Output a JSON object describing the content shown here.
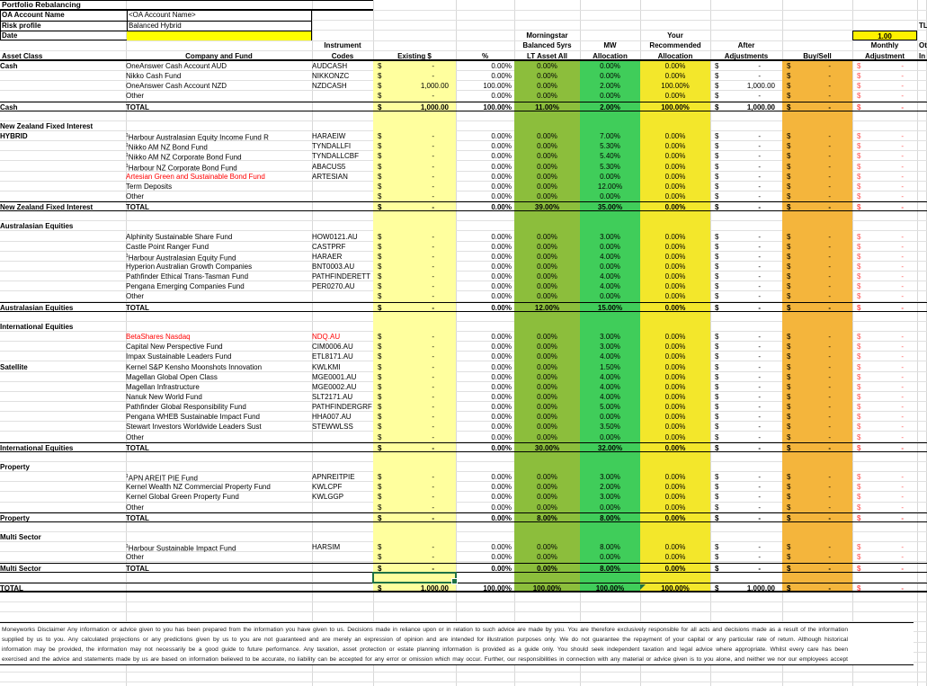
{
  "colors": {
    "existing_band": "#ffff9e",
    "morningstar_band": "#8cbe3c",
    "mw_band": "#40cd5a",
    "recommended_band": "#f3e72b",
    "buysell_band": "#f4b53c",
    "date_cell": "#ffff00",
    "factor_cell": "#fff100",
    "red_text": "#ff0000",
    "monthly_red": "#ff5050",
    "selection_green": "#1e7145",
    "gridline": "#d8d8d8"
  },
  "info": {
    "title": "Portfolio Rebalancing",
    "rows": [
      {
        "label": "OA Account Name",
        "value": "<OA Account Name>"
      },
      {
        "label": "Risk profile",
        "value": "Balanced Hybrid"
      },
      {
        "label": "Date",
        "value": ""
      }
    ],
    "factor_value": "1.00",
    "clipped": {
      "tl": "TL",
      "ot": "Ot",
      "in": "In"
    }
  },
  "columns": {
    "asset_class": "Asset Class",
    "company": "Company and Fund",
    "instrument1": "Instrument",
    "instrument2": "Codes",
    "existing": "Existing $",
    "pct": "%",
    "ms1": "Morningstar",
    "ms2": "Balanced 5yrs",
    "ms3": "LT Asset All",
    "mw1": "MW",
    "mw2": "Allocation",
    "rec1": "Your",
    "rec2": "Recommended",
    "rec3": "Allocation",
    "after1": "After",
    "after2": "Adjustments",
    "buysell": "Buy/Sell",
    "monthly1": "Monthly",
    "monthly2": "Adjustment",
    "total_word": "TOTAL"
  },
  "sheet": {
    "row_defaults": {
      "ac": "",
      "sup": false,
      "name": "",
      "code": "",
      "existing": "-",
      "pct": "0.00%",
      "ms": "0.00%",
      "mw": "0.00%",
      "rec": "0.00%",
      "after": "-",
      "buysell": "-",
      "monthly": "-",
      "red_name": false,
      "red_code": false
    },
    "total_defaults": {
      "existing": "-",
      "pct": "0.00%",
      "ms": "0.00%",
      "mw": "0.00%",
      "rec": "0.00%",
      "after": "-",
      "buysell": "-",
      "monthly": "-"
    },
    "sections": [
      {
        "name": "Cash",
        "has_title_row": false,
        "rows": [
          {
            "ac": "Cash",
            "name": "OneAnswer Cash Account AUD",
            "code": "AUDCASH"
          },
          {
            "name": "Nikko Cash Fund",
            "code": "NIKKONZC"
          },
          {
            "name": "OneAnswer Cash Account NZD",
            "code": "NZDCASH",
            "existing": "1,000.00",
            "pct": "100.00%",
            "mw": "2.00%",
            "rec": "100.00%",
            "after": "1,000.00"
          },
          {
            "name": "Other"
          }
        ],
        "total": {
          "label": "Cash",
          "existing": "1,000.00",
          "pct": "100.00%",
          "ms": "11.00%",
          "mw": "2.00%",
          "rec": "100.00%",
          "after": "1,000.00"
        }
      },
      {
        "name": "New Zealand Fixed Interest",
        "has_title_row": true,
        "rows": [
          {
            "ac": "HYBRID",
            "sup": true,
            "name": "Harbour Australasian Equity Income Fund R",
            "code": "HARAEIW",
            "mw": "7.00%"
          },
          {
            "sup": true,
            "name": "Nikko AM NZ Bond Fund",
            "code": "TYNDALLFI",
            "mw": "5.30%"
          },
          {
            "sup": true,
            "name": "Nikko AM NZ Corporate Bond Fund",
            "code": "TYNDALLCBF",
            "mw": "5.40%"
          },
          {
            "sup": true,
            "name": "Harbour NZ Corporate Bond Fund",
            "code": "ABACUS5",
            "mw": "5.30%"
          },
          {
            "name": "Artesian Green and Sustainable Bond Fund",
            "code": "ARTESIAN",
            "red_name": true
          },
          {
            "name": "Term Deposits",
            "mw": "12.00%"
          },
          {
            "name": "Other"
          }
        ],
        "total": {
          "label": "New Zealand Fixed Interest",
          "ms": "39.00%",
          "mw": "35.00%"
        }
      },
      {
        "name": "Australasian Equities",
        "has_title_row": true,
        "rows": [
          {
            "name": "Alphinity Sustainable Share Fund",
            "code": "HOW0121.AU",
            "mw": "3.00%"
          },
          {
            "name": "Castle Point Ranger Fund",
            "code": "CASTPRF"
          },
          {
            "sup": true,
            "name": "Harbour Australasian Equity Fund",
            "code": "HARAER",
            "mw": "4.00%"
          },
          {
            "name": "Hyperion Australian Growth Companies",
            "code": "BNT0003.AU"
          },
          {
            "name": "Pathfinder Ethical Trans-Tasman Fund",
            "code": "PATHFINDERETT",
            "mw": "4.00%"
          },
          {
            "name": "Pengana Emerging Companies Fund",
            "code": "PER0270.AU",
            "mw": "4.00%"
          },
          {
            "name": "Other"
          }
        ],
        "total": {
          "label": "Australasian Equities",
          "ms": "12.00%",
          "mw": "15.00%"
        }
      },
      {
        "name": "International Equities",
        "has_title_row": true,
        "rows": [
          {
            "name": "BetaShares Nasdaq",
            "code": "NDQ.AU",
            "red_name": true,
            "red_code": true,
            "mw": "3.00%"
          },
          {
            "name": "Capital New Perspective Fund",
            "code": "CIM0006.AU",
            "mw": "3.00%"
          },
          {
            "name": "Impax Sustainable Leaders Fund",
            "code": "ETL8171.AU",
            "mw": "4.00%"
          },
          {
            "ac": "Satellite",
            "name": "Kernel S&P Kensho Moonshots Innovation",
            "code": "KWLKMI",
            "mw": "1.50%"
          },
          {
            "name": "Magellan Global Open Class",
            "code": "MGE0001.AU",
            "mw": "4.00%"
          },
          {
            "name": "Magellan Infrastructure",
            "code": "MGE0002.AU",
            "mw": "4.00%"
          },
          {
            "name": "Nanuk New World Fund",
            "code": "SLT2171.AU",
            "mw": "4.00%"
          },
          {
            "name": "Pathfinder Global Responsibility Fund",
            "code": "PATHFINDERGRF",
            "mw": "5.00%"
          },
          {
            "name": "Pengana WHEB Sustainable Impact Fund",
            "code": "HHA007.AU"
          },
          {
            "name": "Stewart Investors Worldwide Leaders Sust",
            "code": "STEWWLSS",
            "mw": "3.50%"
          },
          {
            "name": "Other"
          }
        ],
        "total": {
          "label": "International Equities",
          "ms": "30.00%",
          "mw": "32.00%"
        }
      },
      {
        "name": "Property",
        "has_title_row": true,
        "rows": [
          {
            "sup": true,
            "name": "APN AREIT PIE Fund",
            "code": "APNREITPIE",
            "mw": "3.00%"
          },
          {
            "name": "Kernel Wealth NZ Commercial Property Fund",
            "code": "KWLCPF",
            "mw": "2.00%"
          },
          {
            "name": "Kernel Global Green Property Fund",
            "code": "KWLGGP",
            "mw": "3.00%"
          },
          {
            "name": "Other"
          }
        ],
        "total": {
          "label": "Property",
          "ms": "8.00%",
          "mw": "8.00%"
        }
      },
      {
        "name": "Multi Sector",
        "has_title_row": true,
        "rows": [
          {
            "sup": true,
            "name": "Harbour Sustainable Impact Fund",
            "code": "HARSIM",
            "mw": "8.00%"
          },
          {
            "name": "Other"
          }
        ],
        "total": {
          "label": "Multi Sector",
          "mw": "8.00%"
        }
      }
    ],
    "grand_total": {
      "label": "TOTAL",
      "existing": "1,000.00",
      "pct": "100.00%",
      "ms": "100.00%",
      "mw": "100.00%",
      "rec": "100.00%",
      "after": "1,000.00",
      "buysell": "-",
      "monthly": "-",
      "flag_on_rec": true
    }
  },
  "disclaimer": [
    "Moneyworks Disclaimer  Any information or advice given to you has been prepared from the information you have given to us.  Decisions made in reliance upon or in relation to such advice are made by you.  You are therefore exclusively responsible for all acts and decisions made as a result of the information",
    "supplied by us to you.  Any calculated projections or any predictions given by us to you are not guaranteed and are merely an expression of opinion and are intended for illustration purposes only.  We do not guarantee the repayment of your capital or any particular rate of return.  Although historical",
    "information may be provided, the information may not necessarily be a good guide to future performance.  Any taxation, asset protection or estate planning information is provided as a guide only.  You should seek independent taxation and legal advice where appropriate.  Whilst every care has been",
    "exercised and the advice and statements made by us are based on information believed to be accurate, no liability can be accepted for any error or omission which may occur.  Further, our responsibilities in connection with any material or advice given is to you alone, and neither we nor our employees accept"
  ]
}
